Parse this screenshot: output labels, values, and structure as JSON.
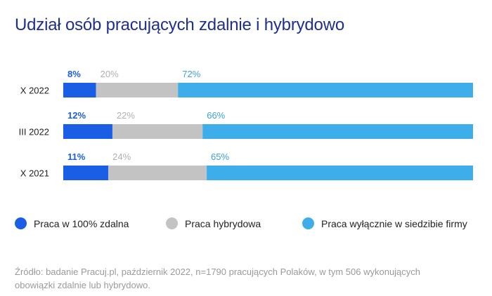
{
  "title": "Udział osób pracujących zdalnie i hybrydowo",
  "chart_data": {
    "type": "bar",
    "orientation": "horizontal",
    "stacked": true,
    "categories": [
      "X 2022",
      "III 2022",
      "X 2021"
    ],
    "series": [
      {
        "name": "Praca w 100% zdalna",
        "values": [
          8,
          12,
          11
        ],
        "labels": [
          "8%",
          "12%",
          "11%"
        ],
        "color": "#1a5ee6",
        "label_color": "#1a5ee6"
      },
      {
        "name": "Praca hybrydowa",
        "values": [
          20,
          22,
          24
        ],
        "labels": [
          "20%",
          "22%",
          "24%"
        ],
        "color": "#c3c3c3",
        "label_color": "#b0b0b0"
      },
      {
        "name": "Praca wyłącznie w siedzibie firmy",
        "values": [
          72,
          66,
          65
        ],
        "labels": [
          "72%",
          "66%",
          "65%"
        ],
        "color": "#3daee9",
        "label_color": "#3d9fdc"
      }
    ],
    "xlim": [
      0,
      100
    ],
    "grid": false,
    "legend_position": "bottom"
  },
  "source": "Źródło: badanie Pracuj.pl, październik 2022, n=1790 pracujących Polaków, w tym 506 wykonujących obowiązki zdalnie lub hybrydowo."
}
